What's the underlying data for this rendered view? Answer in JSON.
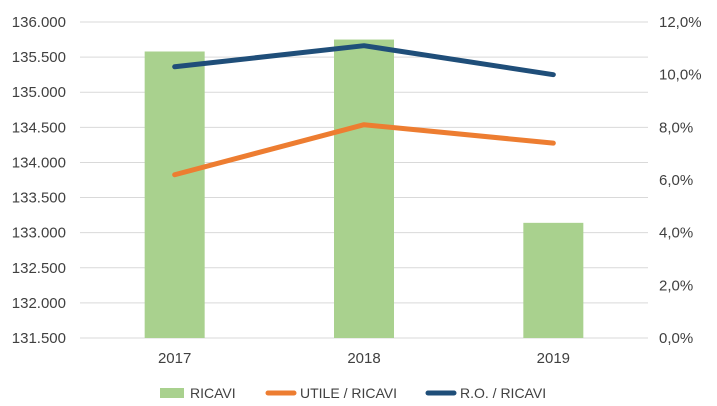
{
  "chart_data": {
    "type": "bar",
    "categories": [
      "2017",
      "2018",
      "2019"
    ],
    "series": [
      {
        "name": "RICAVI",
        "kind": "bar",
        "axis": "left",
        "color": "#a9d18e",
        "values": [
          135580,
          135750,
          133140
        ]
      },
      {
        "name": "UTILE / RICAVI",
        "kind": "line",
        "axis": "right",
        "color": "#ed7d31",
        "values": [
          6.2,
          8.1,
          7.4
        ]
      },
      {
        "name": "R.O. / RICAVI",
        "kind": "line",
        "axis": "right",
        "color": "#1f4e79",
        "values": [
          10.3,
          11.1,
          10.0
        ]
      }
    ],
    "left_axis": {
      "ylim": [
        131500,
        136000
      ],
      "ticks": [
        "131.500",
        "132.000",
        "132.500",
        "133.000",
        "133.500",
        "134.000",
        "134.500",
        "135.000",
        "135.500",
        "136.000"
      ]
    },
    "right_axis": {
      "ylim": [
        0,
        12
      ],
      "ticks": [
        "0,0%",
        "2,0%",
        "4,0%",
        "6,0%",
        "8,0%",
        "10,0%",
        "12,0%"
      ]
    },
    "legend": {
      "position": "bottom",
      "labels": [
        "RICAVI",
        "UTILE / RICAVI",
        "R.O. / RICAVI"
      ]
    },
    "grid": true,
    "title": ""
  }
}
